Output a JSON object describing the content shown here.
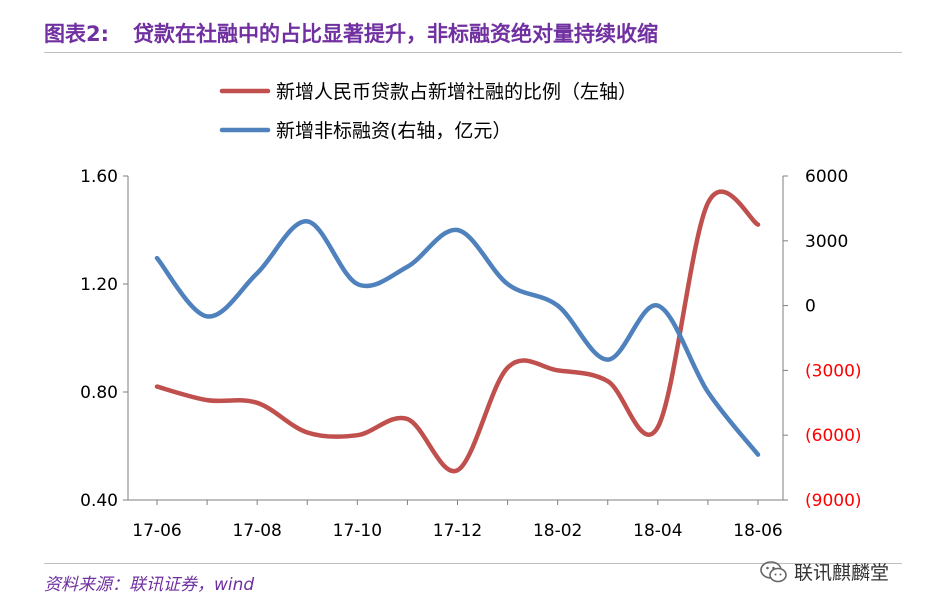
{
  "header": {
    "figure_label": "图表2:",
    "title": "贷款在社融中的占比显著提升，非标融资绝对量持续收缩"
  },
  "footer": {
    "source": "资料来源：联讯证券，wind",
    "watermark": "联讯麒麟堂"
  },
  "chart_data": {
    "type": "line",
    "title": "",
    "xlabel": "",
    "ylabel": "",
    "categories": [
      "17-06",
      "17-07",
      "17-08",
      "17-09",
      "17-10",
      "17-11",
      "17-12",
      "18-01",
      "18-02",
      "18-03",
      "18-04",
      "18-05",
      "18-06"
    ],
    "tick_labels": [
      "17-06",
      "17-08",
      "17-10",
      "17-12",
      "18-02",
      "18-04",
      "18-06"
    ],
    "left_axis": {
      "range": [
        0.4,
        1.6
      ],
      "ticks": [
        "1.60",
        "1.20",
        "0.80",
        "0.40"
      ]
    },
    "right_axis": {
      "range": [
        -9000,
        6000
      ],
      "ticks": [
        "6000",
        "3000",
        "0",
        "(3000)",
        "(6000)",
        "(9000)"
      ],
      "negative_color": "#ff0000"
    },
    "series": [
      {
        "name": "新增人民币贷款占新增社融的比例（左轴",
        "label_suffix": "）",
        "axis": "left",
        "color": "#c0504d",
        "values": [
          0.82,
          0.77,
          0.76,
          0.65,
          0.64,
          0.7,
          0.51,
          0.89,
          0.88,
          0.84,
          0.67,
          1.5,
          1.42
        ]
      },
      {
        "name": "新增非标融资(右轴，亿元",
        "label_suffix": "）",
        "axis": "right",
        "color": "#4f81bd",
        "values": [
          2200,
          -500,
          1500,
          3900,
          1000,
          1800,
          3500,
          1000,
          0,
          -2500,
          0,
          -4000,
          -6900
        ]
      }
    ],
    "grid": false,
    "legend": "top-center"
  }
}
